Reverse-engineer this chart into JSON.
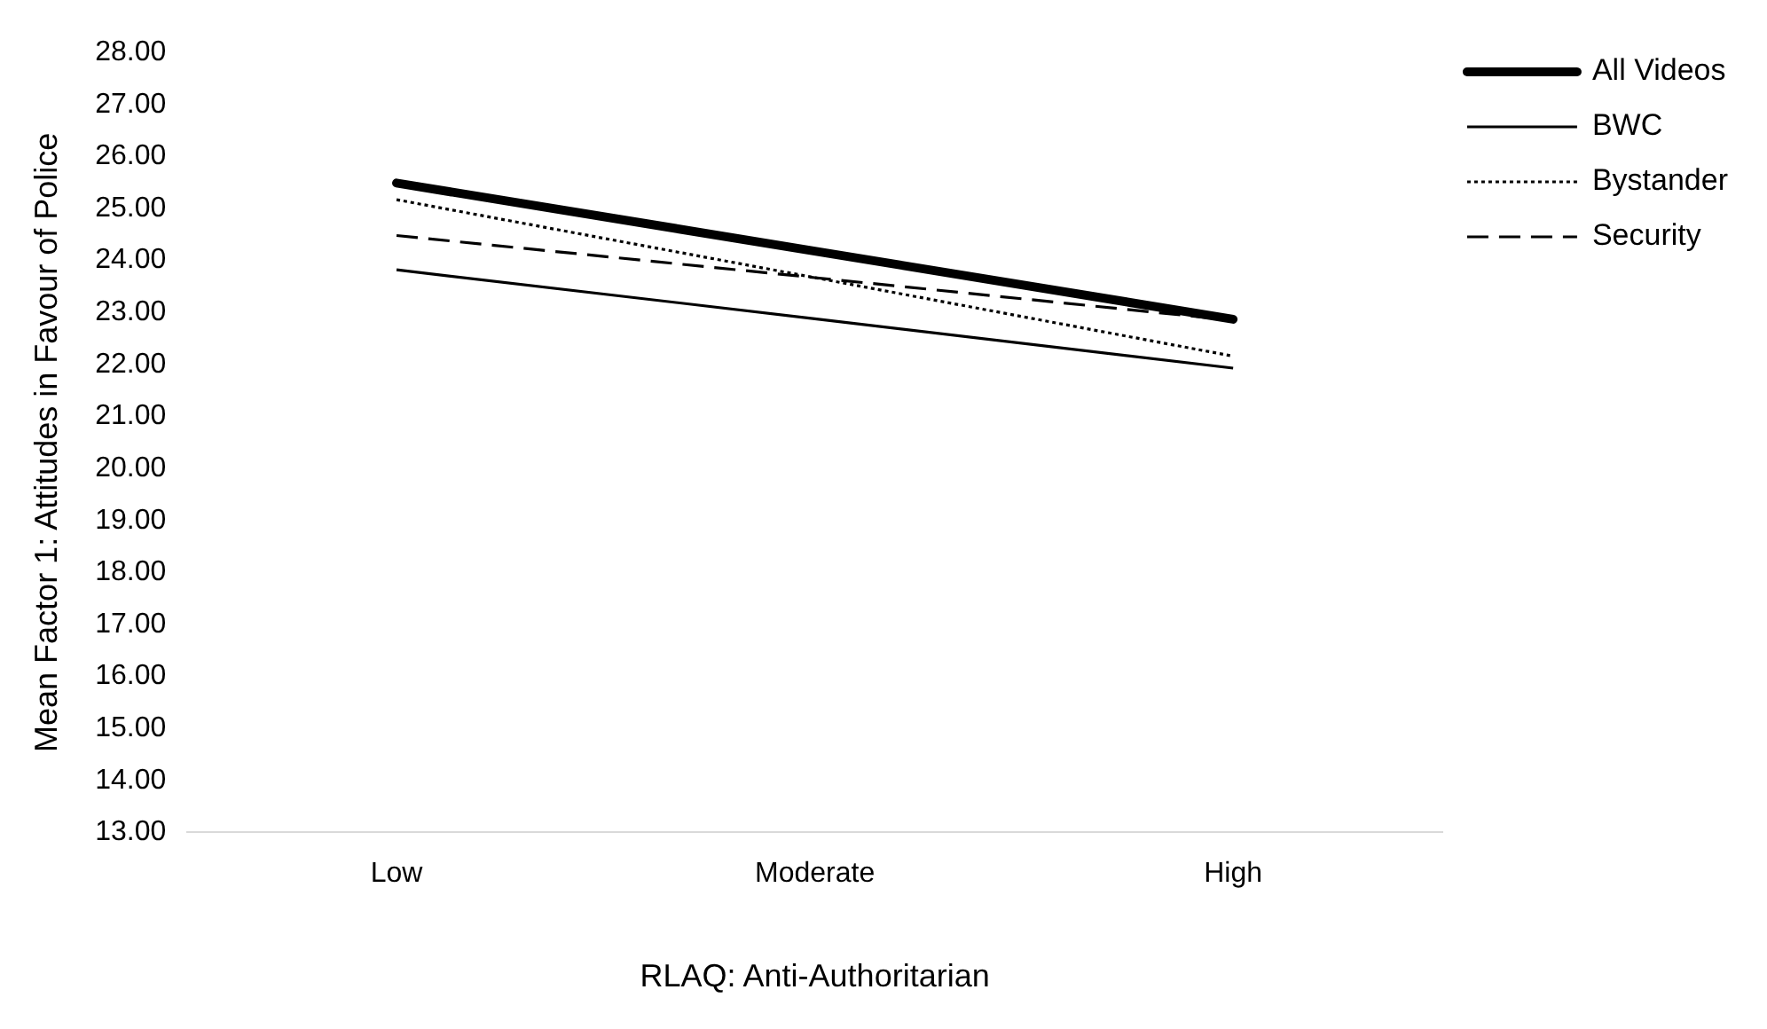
{
  "chart_data": {
    "type": "line",
    "xlabel": "RLAQ: Anti-Authoritarian",
    "ylabel": "Mean Factor 1: Attitudes in Favour of Police",
    "categories": [
      "Low",
      "Moderate",
      "High"
    ],
    "series": [
      {
        "name": "All Videos",
        "color": "#000000",
        "values": [
          25.49,
          24.18,
          22.87
        ],
        "line_style": "solid"
      },
      {
        "name": "BWC",
        "color": "#000000",
        "values": [
          23.82,
          22.88,
          21.93
        ],
        "line_style": "solid"
      },
      {
        "name": "Bystander",
        "color": "#000000",
        "values": [
          25.17,
          23.67,
          22.16
        ],
        "line_style": "dotted"
      },
      {
        "name": "Security",
        "color": "#000000",
        "values": [
          24.48,
          23.67,
          22.85
        ],
        "line_style": "dashed"
      }
    ],
    "ylim": [
      13,
      28
    ],
    "yticks": [
      {
        "value": 13,
        "label": "13.00"
      },
      {
        "value": 14,
        "label": "14.00"
      },
      {
        "value": 15,
        "label": "15.00"
      },
      {
        "value": 16,
        "label": "16.00"
      },
      {
        "value": 17,
        "label": "17.00"
      },
      {
        "value": 18,
        "label": "18.00"
      },
      {
        "value": 19,
        "label": "19.00"
      },
      {
        "value": 20,
        "label": "20.00"
      },
      {
        "value": 21,
        "label": "21.00"
      },
      {
        "value": 22,
        "label": "22.00"
      },
      {
        "value": 23,
        "label": "23.00"
      },
      {
        "value": 24,
        "label": "24.00"
      },
      {
        "value": 25,
        "label": "25.00"
      },
      {
        "value": 26,
        "label": "26.00"
      },
      {
        "value": 27,
        "label": "27.00"
      },
      {
        "value": 28,
        "label": "28.00"
      }
    ],
    "grid": false,
    "legend": "top right",
    "marker": "none"
  }
}
